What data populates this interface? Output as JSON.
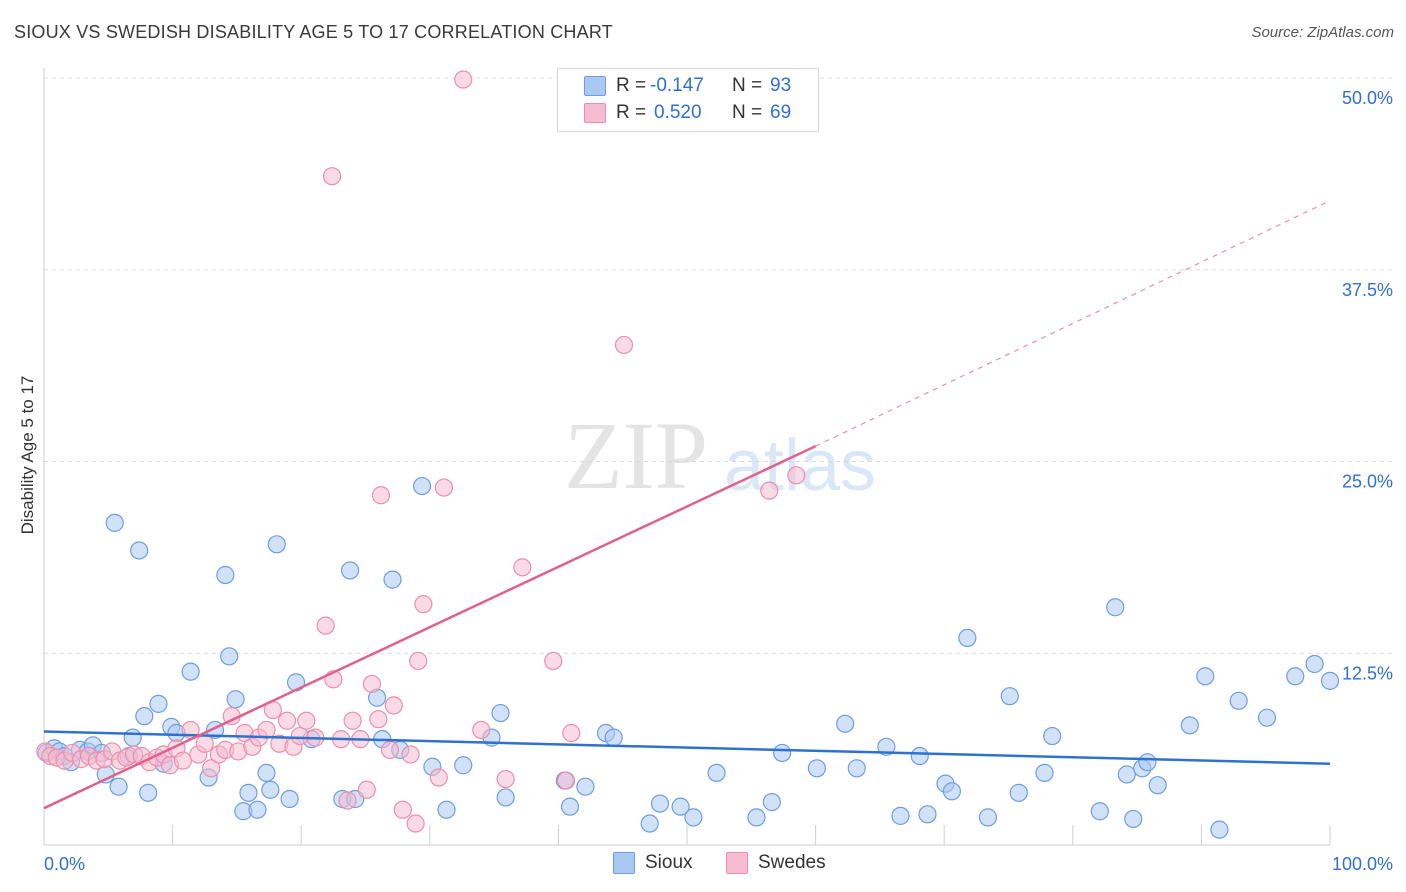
{
  "header": {
    "title": "SIOUX VS SWEDISH DISABILITY AGE 5 TO 17 CORRELATION CHART",
    "source": "Source: ZipAtlas.com"
  },
  "watermark": {
    "zip": "ZIP",
    "atlas": "atlas"
  },
  "legend_top": {
    "rows": [
      {
        "r_label": "R =",
        "r_value": "-0.147",
        "n_label": "N =",
        "n_value": "93"
      },
      {
        "r_label": "R =",
        "r_value": "0.520",
        "n_label": "N =",
        "n_value": "69"
      }
    ]
  },
  "legend_bottom": [
    "Sioux",
    "Swedes"
  ],
  "colors": {
    "sioux_fill": "#a9c8f2",
    "sioux_stroke": "#6f9ee0",
    "sioux_line": "#2e72cf",
    "swedes_fill": "#f6bcd0",
    "swedes_stroke": "#ec8fae",
    "swedes_line": "#e2608c",
    "grid": "#dcdcdc",
    "tick_label": "#2f6fd6"
  },
  "chart_data": {
    "type": "scatter",
    "title": "SIOUX VS SWEDISH DISABILITY AGE 5 TO 17 CORRELATION CHART",
    "xlabel": "",
    "ylabel": "Disability Age 5 to 17",
    "xlim": [
      0,
      100
    ],
    "ylim": [
      0,
      50
    ],
    "x_tick_labels": [
      "0.0%",
      "100.0%"
    ],
    "y_ticks": [
      12.5,
      25.0,
      37.5,
      50.0
    ],
    "y_tick_labels": [
      "12.5%",
      "25.0%",
      "37.5%",
      "50.0%"
    ],
    "grid": "horizontal dashed",
    "legend": "top-center and bottom",
    "series": [
      {
        "name": "Sioux",
        "stats": {
          "R": -0.147,
          "N": 93
        },
        "trend": {
          "x": [
            0,
            100
          ],
          "y": [
            7.4,
            5.3
          ]
        },
        "points": [
          [
            0.2,
            6.0
          ],
          [
            0.8,
            6.3
          ],
          [
            1.2,
            6.1
          ],
          [
            1.6,
            5.8
          ],
          [
            2.1,
            5.4
          ],
          [
            2.8,
            6.2
          ],
          [
            3.4,
            6.1
          ],
          [
            3.8,
            6.5
          ],
          [
            4.5,
            6.0
          ],
          [
            4.8,
            4.6
          ],
          [
            5.5,
            21.0
          ],
          [
            5.8,
            3.8
          ],
          [
            6.6,
            5.8
          ],
          [
            6.9,
            7.0
          ],
          [
            7.4,
            19.2
          ],
          [
            7.8,
            8.4
          ],
          [
            8.1,
            3.4
          ],
          [
            8.9,
            9.2
          ],
          [
            9.3,
            5.3
          ],
          [
            9.9,
            7.7
          ],
          [
            10.3,
            7.3
          ],
          [
            11.4,
            11.3
          ],
          [
            12.8,
            4.4
          ],
          [
            13.3,
            7.5
          ],
          [
            14.1,
            17.6
          ],
          [
            14.4,
            12.3
          ],
          [
            14.9,
            9.5
          ],
          [
            15.5,
            2.2
          ],
          [
            15.9,
            3.4
          ],
          [
            16.6,
            2.3
          ],
          [
            17.3,
            4.7
          ],
          [
            17.6,
            3.6
          ],
          [
            18.1,
            19.6
          ],
          [
            19.1,
            3.0
          ],
          [
            19.6,
            10.6
          ],
          [
            20.8,
            6.9
          ],
          [
            23.2,
            3.0
          ],
          [
            23.8,
            17.9
          ],
          [
            24.2,
            3.0
          ],
          [
            25.9,
            9.6
          ],
          [
            26.3,
            6.9
          ],
          [
            27.1,
            17.3
          ],
          [
            27.7,
            6.2
          ],
          [
            29.4,
            23.4
          ],
          [
            30.2,
            5.1
          ],
          [
            31.3,
            2.3
          ],
          [
            32.6,
            5.2
          ],
          [
            34.8,
            7.0
          ],
          [
            35.5,
            8.6
          ],
          [
            35.9,
            3.1
          ],
          [
            40.5,
            4.2
          ],
          [
            40.9,
            2.5
          ],
          [
            42.1,
            3.8
          ],
          [
            43.7,
            7.3
          ],
          [
            44.3,
            7.0
          ],
          [
            47.1,
            1.4
          ],
          [
            47.9,
            2.7
          ],
          [
            49.5,
            2.5
          ],
          [
            50.5,
            1.8
          ],
          [
            52.3,
            4.7
          ],
          [
            55.4,
            1.8
          ],
          [
            56.6,
            2.8
          ],
          [
            57.4,
            6.0
          ],
          [
            60.1,
            5.0
          ],
          [
            62.3,
            7.9
          ],
          [
            63.2,
            5.0
          ],
          [
            65.5,
            6.4
          ],
          [
            66.6,
            1.9
          ],
          [
            68.1,
            5.8
          ],
          [
            68.7,
            2.0
          ],
          [
            70.1,
            4.0
          ],
          [
            70.6,
            3.5
          ],
          [
            71.8,
            13.5
          ],
          [
            73.4,
            1.8
          ],
          [
            75.1,
            9.7
          ],
          [
            75.8,
            3.4
          ],
          [
            77.8,
            4.7
          ],
          [
            78.4,
            7.1
          ],
          [
            82.1,
            2.2
          ],
          [
            83.3,
            15.5
          ],
          [
            84.2,
            4.6
          ],
          [
            84.7,
            1.7
          ],
          [
            85.4,
            5.0
          ],
          [
            85.8,
            5.4
          ],
          [
            86.6,
            3.9
          ],
          [
            89.1,
            7.8
          ],
          [
            90.3,
            11.0
          ],
          [
            91.4,
            1.0
          ],
          [
            92.9,
            9.4
          ],
          [
            95.1,
            8.3
          ],
          [
            97.3,
            11.0
          ],
          [
            100,
            10.7
          ],
          [
            98.8,
            11.8
          ]
        ]
      },
      {
        "name": "Swedes",
        "stats": {
          "R": 0.52,
          "N": 69
        },
        "trend": {
          "x": [
            0,
            60
          ],
          "y": [
            2.4,
            26.0
          ]
        },
        "trend_extension": {
          "x": [
            60,
            100
          ],
          "y": [
            26.0,
            42.0
          ]
        },
        "points": [
          [
            0.1,
            6.1
          ],
          [
            0.5,
            5.8
          ],
          [
            1.0,
            5.7
          ],
          [
            1.6,
            5.5
          ],
          [
            2.2,
            6.0
          ],
          [
            2.9,
            5.6
          ],
          [
            3.5,
            5.8
          ],
          [
            4.1,
            5.5
          ],
          [
            4.7,
            5.6
          ],
          [
            5.3,
            6.1
          ],
          [
            5.9,
            5.5
          ],
          [
            6.4,
            5.7
          ],
          [
            7.0,
            5.9
          ],
          [
            7.6,
            5.8
          ],
          [
            8.2,
            5.4
          ],
          [
            8.8,
            5.7
          ],
          [
            9.3,
            5.9
          ],
          [
            9.8,
            5.2
          ],
          [
            10.3,
            6.3
          ],
          [
            10.8,
            5.5
          ],
          [
            11.4,
            7.5
          ],
          [
            12.0,
            5.9
          ],
          [
            12.5,
            6.6
          ],
          [
            13.0,
            5.0
          ],
          [
            13.6,
            5.9
          ],
          [
            14.1,
            6.2
          ],
          [
            14.6,
            8.4
          ],
          [
            15.1,
            6.1
          ],
          [
            15.6,
            7.3
          ],
          [
            16.2,
            6.4
          ],
          [
            16.7,
            7.0
          ],
          [
            17.3,
            7.5
          ],
          [
            17.8,
            8.8
          ],
          [
            18.3,
            6.6
          ],
          [
            18.9,
            8.1
          ],
          [
            19.4,
            6.4
          ],
          [
            19.9,
            7.1
          ],
          [
            20.4,
            8.1
          ],
          [
            21.1,
            7.0
          ],
          [
            21.9,
            14.3
          ],
          [
            22.5,
            10.8
          ],
          [
            22.4,
            43.6
          ],
          [
            23.1,
            6.9
          ],
          [
            23.6,
            2.9
          ],
          [
            24.0,
            8.1
          ],
          [
            24.6,
            6.9
          ],
          [
            25.1,
            3.6
          ],
          [
            25.5,
            10.5
          ],
          [
            26.0,
            8.2
          ],
          [
            26.2,
            22.8
          ],
          [
            26.9,
            6.2
          ],
          [
            27.2,
            9.1
          ],
          [
            27.9,
            2.3
          ],
          [
            28.9,
            1.4
          ],
          [
            28.5,
            5.9
          ],
          [
            29.1,
            12.0
          ],
          [
            29.5,
            15.7
          ],
          [
            30.7,
            4.4
          ],
          [
            31.1,
            23.3
          ],
          [
            32.6,
            49.9
          ],
          [
            34.0,
            7.5
          ],
          [
            35.9,
            4.3
          ],
          [
            37.2,
            18.1
          ],
          [
            39.6,
            12.0
          ],
          [
            40.6,
            4.2
          ],
          [
            45.1,
            32.6
          ],
          [
            56.4,
            23.1
          ],
          [
            58.5,
            24.1
          ],
          [
            41.0,
            7.3
          ]
        ]
      }
    ]
  }
}
